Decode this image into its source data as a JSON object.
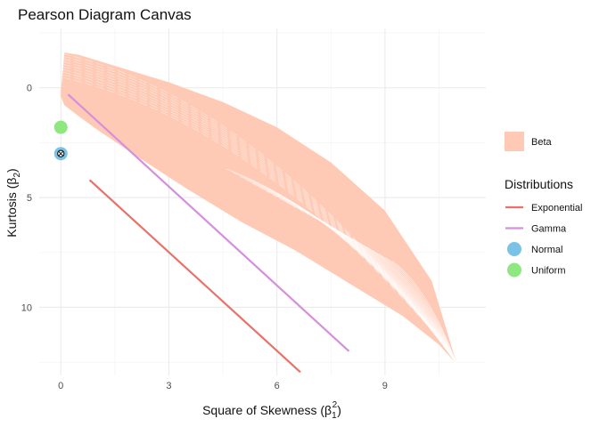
{
  "chart_data": {
    "type": "line",
    "title": "Pearson Diagram Canvas",
    "xlabel": "Square of Skewness",
    "xlabel_symbol": "(β",
    "xlabel_sub": "1",
    "xlabel_sup": "2",
    "xlabel_close": ")",
    "ylabel": "Kurtosis",
    "ylabel_symbol": "(β",
    "ylabel_sub": "2",
    "ylabel_close": ")",
    "xlim": [
      -0.6,
      11.8
    ],
    "ylim": [
      13.1,
      -2.7
    ],
    "y_reversed": true,
    "x_ticks": [
      "0",
      "3",
      "6",
      "9"
    ],
    "y_ticks": [
      "0",
      "5",
      "10"
    ],
    "grid": true,
    "legend_position": "right",
    "fill_legend": [
      {
        "name": "Beta",
        "color": "#ffcab5"
      }
    ],
    "legend_title": "Distributions",
    "series": [
      {
        "name": "Exponential",
        "type": "line",
        "color": "#e8716a",
        "x": [
          0.8,
          6.65
        ],
        "y": [
          4.2,
          12.95
        ]
      },
      {
        "name": "Gamma",
        "type": "line",
        "color": "#d58fdc",
        "x": [
          0.2,
          8.0
        ],
        "y": [
          0.3,
          12.0
        ]
      },
      {
        "name": "Normal",
        "type": "point",
        "color": "#7ac3e6",
        "x": [
          0
        ],
        "y": [
          3
        ]
      },
      {
        "name": "Uniform",
        "type": "point",
        "color": "#8ee87f",
        "x": [
          0
        ],
        "y": [
          1.8
        ]
      }
    ],
    "beta_region": {
      "name": "Beta",
      "color": "#ffcab5",
      "outline": {
        "x": [
          0,
          0.1,
          0.5,
          1.5,
          3.0,
          4.5,
          6.0,
          7.5,
          9.0,
          10.3,
          11.0,
          10.5,
          9.5,
          8.0,
          6.5,
          5.0,
          3.5,
          2.0,
          1.0,
          0.5,
          0.1,
          0
        ],
        "y": [
          0.2,
          -1.6,
          -1.5,
          -1.0,
          -0.25,
          0.65,
          1.8,
          3.4,
          5.6,
          8.8,
          12.6,
          11.7,
          10.4,
          8.9,
          7.4,
          6.1,
          4.6,
          3.0,
          1.9,
          1.3,
          0.8,
          0.4
        ]
      }
    },
    "reference_point": {
      "x": 0,
      "y": 3,
      "symbol": "⊗"
    }
  }
}
